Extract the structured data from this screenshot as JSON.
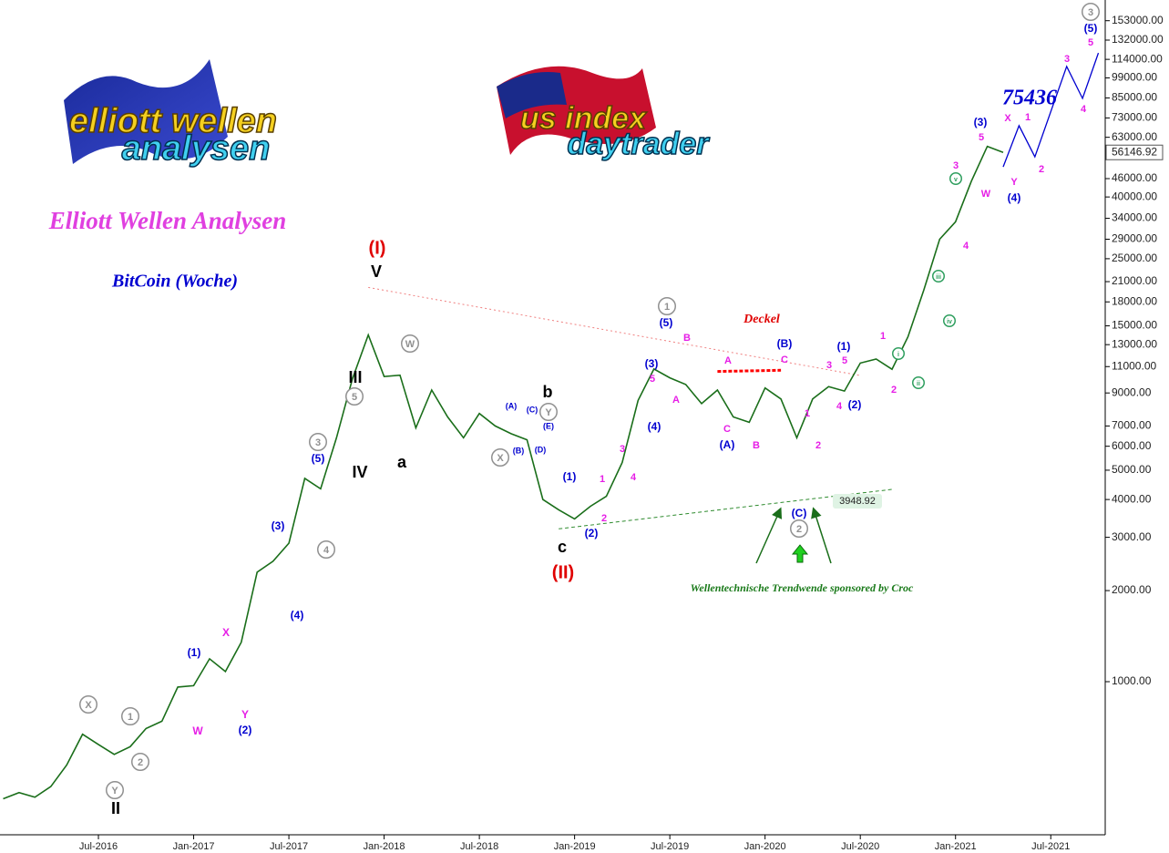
{
  "logos": {
    "left": [
      "elliott wellen",
      "analysen"
    ],
    "right": [
      "us index",
      "daytrader"
    ]
  },
  "chart_data": {
    "type": "line",
    "title": "Elliott Wellen Analysen",
    "subtitle": "BitCoin (Woche)",
    "log_scale": true,
    "color": "#1a6e1a",
    "x": [
      "2016-01",
      "2016-02",
      "2016-03",
      "2016-04",
      "2016-05",
      "2016-06",
      "2016-07",
      "2016-08",
      "2016-09",
      "2016-10",
      "2016-11",
      "2016-12",
      "2017-01",
      "2017-02",
      "2017-03",
      "2017-04",
      "2017-05",
      "2017-06",
      "2017-07",
      "2017-08",
      "2017-09",
      "2017-10",
      "2017-11",
      "2017-12",
      "2018-01",
      "2018-02",
      "2018-03",
      "2018-04",
      "2018-05",
      "2018-06",
      "2018-07",
      "2018-08",
      "2018-09",
      "2018-10",
      "2018-11",
      "2018-12",
      "2019-01",
      "2019-02",
      "2019-03",
      "2019-04",
      "2019-05",
      "2019-06",
      "2019-07",
      "2019-08",
      "2019-09",
      "2019-10",
      "2019-11",
      "2019-12",
      "2020-01",
      "2020-02",
      "2020-03",
      "2020-04",
      "2020-05",
      "2020-06",
      "2020-07",
      "2020-08",
      "2020-09",
      "2020-10",
      "2020-11",
      "2020-12",
      "2021-01",
      "2021-02",
      "2021-03",
      "2021-04"
    ],
    "values": [
      410,
      430,
      415,
      450,
      530,
      670,
      620,
      575,
      610,
      700,
      740,
      960,
      970,
      1190,
      1080,
      1350,
      2300,
      2500,
      2870,
      4700,
      4340,
      6400,
      10000,
      14000,
      10200,
      10300,
      6900,
      9200,
      7500,
      6400,
      7700,
      7000,
      6600,
      6300,
      4000,
      3700,
      3450,
      3800,
      4100,
      5300,
      8500,
      10800,
      10100,
      9600,
      8300,
      9200,
      7500,
      7200,
      9350,
      8600,
      6400,
      8600,
      9450,
      9130,
      11300,
      11650,
      10780,
      13800,
      19700,
      29000,
      33100,
      45100,
      58800,
      56146.92
    ],
    "projection": {
      "color": "#0000d0",
      "x": [
        "2021-04",
        "2021-05",
        "2021-06",
        "2021-08",
        "2021-09",
        "2021-10"
      ],
      "values": [
        50300,
        68800,
        54300,
        108000,
        84700,
        119700
      ]
    },
    "low_price": 3948.92,
    "trendlines": [
      {
        "color": "#f08080",
        "x": [
          "2017-12",
          "2020-07"
        ],
        "values": [
          20100,
          10280
        ]
      },
      {
        "color": "#2e8b2e",
        "x": [
          "2018-12",
          "2020-09"
        ],
        "values": [
          3200,
          4320
        ]
      },
      {
        "color": "#ff0000",
        "x": [
          "2019-10",
          "2020-02"
        ],
        "values": [
          10600,
          10700
        ]
      }
    ],
    "xlim": [
      "2016-01",
      "2021-10"
    ],
    "xticks": [
      {
        "value": "2016-07",
        "label": "Jul-2016"
      },
      {
        "value": "2017-01",
        "label": "Jan-2017"
      },
      {
        "value": "2017-07",
        "label": "Jul-2017"
      },
      {
        "value": "2018-01",
        "label": "Jan-2018"
      },
      {
        "value": "2018-07",
        "label": "Jul-2018"
      },
      {
        "value": "2019-01",
        "label": "Jan-2019"
      },
      {
        "value": "2019-07",
        "label": "Jul-2019"
      },
      {
        "value": "2020-01",
        "label": "Jan-2020"
      },
      {
        "value": "2020-07",
        "label": "Jul-2020"
      },
      {
        "value": "2021-01",
        "label": "Jan-2021"
      },
      {
        "value": "2021-07",
        "label": "Jul-2021"
      }
    ],
    "ylim": [
      314,
      173000
    ],
    "yticks": [
      {
        "value": 1000,
        "label": "1000.00"
      },
      {
        "value": 2000,
        "label": "2000.00"
      },
      {
        "value": 3000,
        "label": "3000.00"
      },
      {
        "value": 4000,
        "label": "4000.00"
      },
      {
        "value": 5000,
        "label": "5000.00"
      },
      {
        "value": 6000,
        "label": "6000.00"
      },
      {
        "value": 7000,
        "label": "7000.00"
      },
      {
        "value": 9000,
        "label": "9000.00"
      },
      {
        "value": 11000,
        "label": "11000.00"
      },
      {
        "value": 13000,
        "label": "13000.00"
      },
      {
        "value": 15000,
        "label": "15000.00"
      },
      {
        "value": 18000,
        "label": "18000.00"
      },
      {
        "value": 21000,
        "label": "21000.00"
      },
      {
        "value": 25000,
        "label": "25000.00"
      },
      {
        "value": 29000,
        "label": "29000.00"
      },
      {
        "value": 34000,
        "label": "34000.00"
      },
      {
        "value": 40000,
        "label": "40000.00"
      },
      {
        "value": 46000,
        "label": "46000.00"
      },
      {
        "value": 63000,
        "label": "63000.00"
      },
      {
        "value": 73000,
        "label": "73000.00"
      },
      {
        "value": 85000,
        "label": "85000.00"
      },
      {
        "value": 99000,
        "label": "99000.00"
      },
      {
        "value": 114000,
        "label": "114000.00"
      },
      {
        "value": 132000,
        "label": "132000.00"
      },
      {
        "value": 153000,
        "label": "153000.00"
      }
    ],
    "annotations": [
      {
        "text": "(I)",
        "color": "#e00000"
      },
      {
        "text": "V",
        "color": "#000000"
      },
      {
        "text": "III",
        "color": "#000000"
      },
      {
        "text": "IV",
        "color": "#000000"
      },
      {
        "text": "a",
        "color": "#000000"
      },
      {
        "text": "b",
        "color": "#000000"
      },
      {
        "text": "c",
        "color": "#000000"
      },
      {
        "text": "(II)",
        "color": "#e00000"
      },
      {
        "text": "II",
        "color": "#000000"
      },
      {
        "text": "(1)",
        "color": "#0000d0"
      },
      {
        "text": "(2)",
        "color": "#0000d0"
      },
      {
        "text": "(3)",
        "color": "#0000d0"
      },
      {
        "text": "(4)",
        "color": "#0000d0"
      },
      {
        "text": "(5)",
        "color": "#0000d0"
      },
      {
        "text": "(1)",
        "color": "#0000d0"
      },
      {
        "text": "(2)",
        "color": "#0000d0"
      },
      {
        "text": "(3)",
        "color": "#0000d0"
      },
      {
        "text": "(4)",
        "color": "#0000d0"
      },
      {
        "text": "(5)",
        "color": "#0000d0"
      },
      {
        "text": "(A)",
        "color": "#0000d0"
      },
      {
        "text": "(B)",
        "color": "#0000d0"
      },
      {
        "text": "(C)",
        "color": "#0000d0"
      },
      {
        "text": "(1)",
        "color": "#0000d0"
      },
      {
        "text": "(2)",
        "color": "#0000d0"
      },
      {
        "text": "(3)",
        "color": "#0000d0"
      },
      {
        "text": "(4)",
        "color": "#0000d0"
      },
      {
        "text": "(5)",
        "color": "#0000d0"
      },
      {
        "text": "(A)",
        "color": "#0000d0"
      },
      {
        "text": "(B)",
        "color": "#0000d0"
      },
      {
        "text": "(C)",
        "color": "#0000d0"
      },
      {
        "text": "(D)",
        "color": "#0000d0"
      },
      {
        "text": "(E)",
        "color": "#0000d0"
      },
      {
        "text": "X",
        "color": "#e61ee6"
      },
      {
        "text": "W",
        "color": "#e61ee6"
      },
      {
        "text": "Y",
        "color": "#e61ee6"
      },
      {
        "text": "1",
        "color": "#e61ee6"
      },
      {
        "text": "2",
        "color": "#e61ee6"
      },
      {
        "text": "3",
        "color": "#e61ee6"
      },
      {
        "text": "4",
        "color": "#e61ee6"
      },
      {
        "text": "5",
        "color": "#e61ee6"
      },
      {
        "text": "A",
        "color": "#e61ee6"
      },
      {
        "text": "B",
        "color": "#e61ee6"
      },
      {
        "text": "A",
        "color": "#e61ee6"
      },
      {
        "text": "C",
        "color": "#e61ee6"
      },
      {
        "text": "B",
        "color": "#e61ee6"
      },
      {
        "text": "C",
        "color": "#e61ee6"
      },
      {
        "text": "1",
        "color": "#e61ee6"
      },
      {
        "text": "2",
        "color": "#e61ee6"
      },
      {
        "text": "3",
        "color": "#e61ee6"
      },
      {
        "text": "4",
        "color": "#e61ee6"
      },
      {
        "text": "5",
        "color": "#e61ee6"
      },
      {
        "text": "1",
        "color": "#e61ee6"
      },
      {
        "text": "2",
        "color": "#e61ee6"
      },
      {
        "text": "3",
        "color": "#e61ee6"
      },
      {
        "text": "4",
        "color": "#e61ee6"
      },
      {
        "text": "W",
        "color": "#e61ee6"
      },
      {
        "text": "5",
        "color": "#e61ee6"
      },
      {
        "text": "X",
        "color": "#e61ee6"
      },
      {
        "text": "Y",
        "color": "#e61ee6"
      },
      {
        "text": "1",
        "color": "#e61ee6"
      },
      {
        "text": "2",
        "color": "#e61ee6"
      },
      {
        "text": "3",
        "color": "#e61ee6"
      },
      {
        "text": "4",
        "color": "#e61ee6"
      },
      {
        "text": "5",
        "color": "#e61ee6"
      },
      {
        "text": "X",
        "color": "#909090"
      },
      {
        "text": "1",
        "color": "#909090"
      },
      {
        "text": "Y",
        "color": "#909090"
      },
      {
        "text": "2",
        "color": "#909090"
      },
      {
        "text": "3",
        "color": "#909090"
      },
      {
        "text": "4",
        "color": "#909090"
      },
      {
        "text": "5",
        "color": "#909090"
      },
      {
        "text": "W",
        "color": "#909090"
      },
      {
        "text": "X",
        "color": "#909090"
      },
      {
        "text": "Y",
        "color": "#909090"
      },
      {
        "text": "1",
        "color": "#909090"
      },
      {
        "text": "2",
        "color": "#909090"
      },
      {
        "text": "3",
        "color": "#909090"
      },
      {
        "text": "i",
        "color": "#2e9e5e"
      },
      {
        "text": "ii",
        "color": "#2e9e5e"
      },
      {
        "text": "iii",
        "color": "#2e9e5e"
      },
      {
        "text": "iv",
        "color": "#2e9e5e"
      },
      {
        "text": "v",
        "color": "#2e9e5e"
      },
      {
        "text": "Deckel",
        "color": "#e00000"
      },
      {
        "text": "75436",
        "color": "#0000d0"
      },
      {
        "text": "Wellentechnische Trendwende sponsored by Croc",
        "color": "#1a7a1a"
      }
    ]
  }
}
